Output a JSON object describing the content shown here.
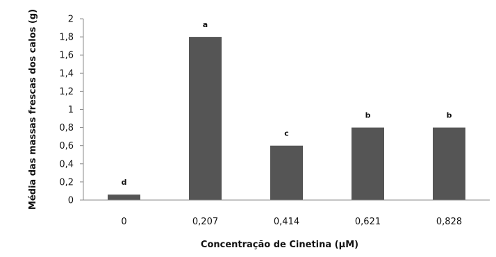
{
  "chart_data": {
    "type": "bar",
    "categories": [
      "0",
      "0,207",
      "0,414",
      "0,621",
      "0,828"
    ],
    "values": [
      0.06,
      1.8,
      0.6,
      0.8,
      0.8
    ],
    "significance_letters": [
      "d",
      "a",
      "c",
      "b",
      "b"
    ],
    "xlabel": "Concentração de Cinetina (µM)",
    "ylabel": "Média das massas frescas dos calos (g)",
    "ylim": [
      0,
      2
    ],
    "y_ticks": [
      0,
      0.2,
      0.4,
      0.6,
      0.8,
      1,
      1.2,
      1.4,
      1.6,
      1.8,
      2
    ],
    "y_tick_labels": [
      "0",
      "0,2",
      "0,4",
      "0,6",
      "0,8",
      "1",
      "1,2",
      "1,4",
      "1,6",
      "1,8",
      "2"
    ],
    "grid": false,
    "legend": false,
    "bar_color": "#555555"
  }
}
